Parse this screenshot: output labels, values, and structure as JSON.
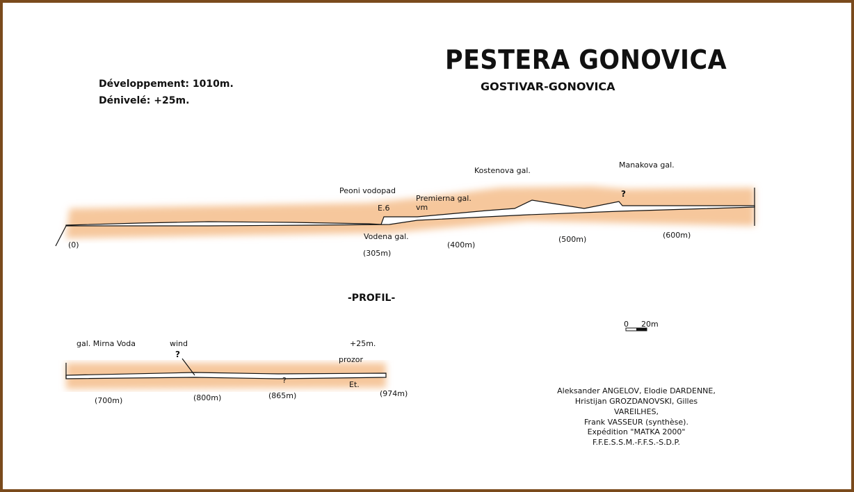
{
  "title": "PESTERA GONOVICA",
  "subtitle": "GOSTIVAR-GONOVICA",
  "stats": {
    "development": "Développement: 1010m.",
    "denivele": "Dénivelé: +25m."
  },
  "profile_label": "-PROFIL-",
  "upper_labels": {
    "peoni": "Peoni vodopad",
    "e6": "E.6",
    "premierna": "Premierna gal.",
    "vm": "vm",
    "kostenova": "Kostenova gal.",
    "manakova": "Manakova gal.",
    "question": "?",
    "vodena": "Vodena gal.",
    "d0": "(0)",
    "d305": "(305m)",
    "d400": "(400m)",
    "d500": "(500m)",
    "d600": "(600m)"
  },
  "lower_labels": {
    "mirna": "gal. Mirna Voda",
    "wind": "wind",
    "q1": "?",
    "q2": "?",
    "plus25": "+25m.",
    "prozor": "prozor",
    "et": "Et.",
    "d700": "(700m)",
    "d800": "(800m)",
    "d865": "(865m)",
    "d974": "(974m)"
  },
  "scale": {
    "zero": "0",
    "twenty": "20m"
  },
  "credits": {
    "line1": "Aleksander ANGELOV, Elodie DARDENNE,",
    "line2": "Hristijan GROZDANOVSKI, Gilles VAREILHES,",
    "line3": "Frank VASSEUR (synthèse).",
    "line4": "Expédition \"MATKA 2000\"",
    "line5": "F.F.E.S.S.M.-F.F.S.-S.D.P."
  },
  "colors": {
    "rock": "#f6c79c",
    "frame": "#7a4a1c"
  }
}
